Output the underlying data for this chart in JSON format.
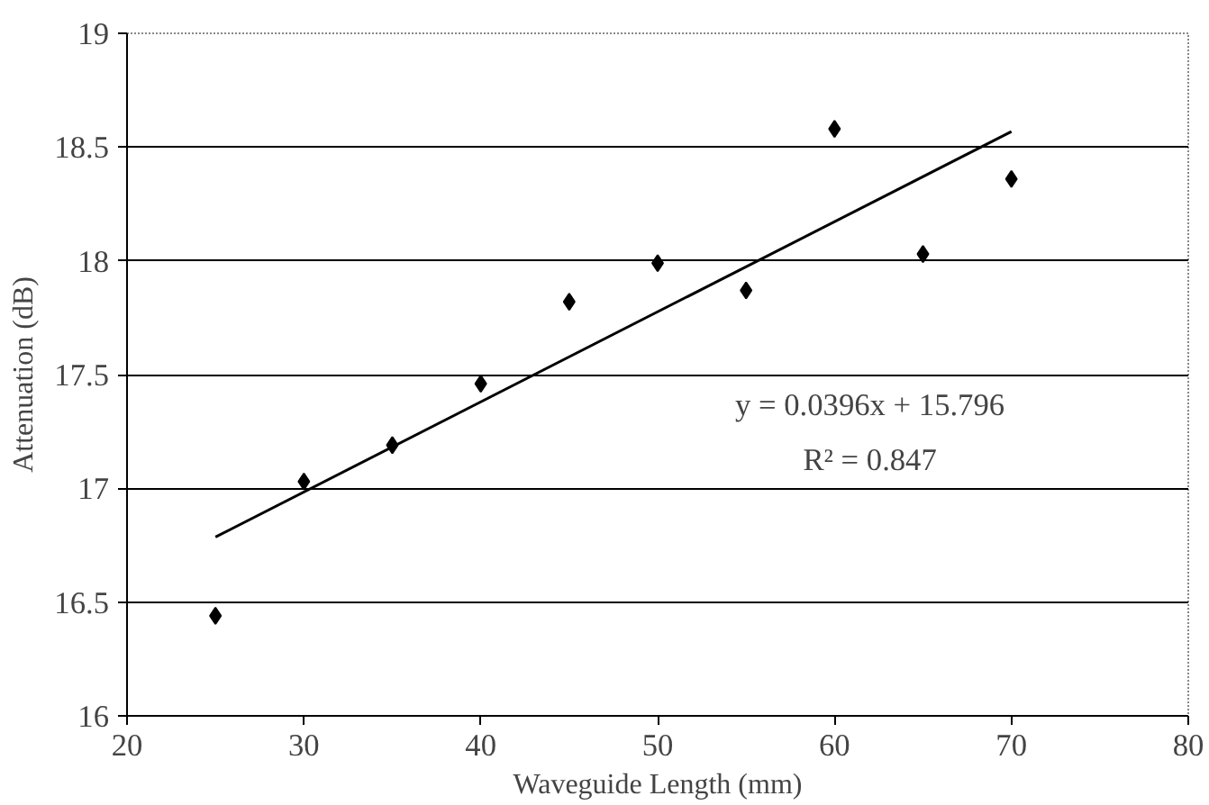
{
  "chart_data": {
    "type": "scatter",
    "xlabel": "Waveguide Length (mm)",
    "ylabel": "Attenuation (dB)",
    "x": [
      25,
      30,
      35,
      40,
      45,
      50,
      55,
      60,
      65,
      70
    ],
    "series": [
      {
        "color": "#000000",
        "marker": "diamond",
        "values": [
          16.44,
          17.03,
          17.19,
          17.46,
          17.82,
          17.99,
          17.87,
          18.58,
          18.03,
          18.36
        ]
      },
      {
        "type": "line",
        "color": "#000000",
        "marker": "none",
        "x": [
          25,
          70
        ],
        "values": [
          16.786,
          18.568
        ]
      }
    ],
    "xlim": [
      20,
      80
    ],
    "xticks": [
      20,
      30,
      40,
      50,
      60,
      70,
      80
    ],
    "ylim": [
      16,
      19
    ],
    "yticks": [
      16,
      16.5,
      17,
      17.5,
      18,
      18.5,
      19
    ],
    "grid": "y",
    "annotations": [
      "y = 0.0396x + 15.796",
      "R² = 0.847"
    ]
  }
}
